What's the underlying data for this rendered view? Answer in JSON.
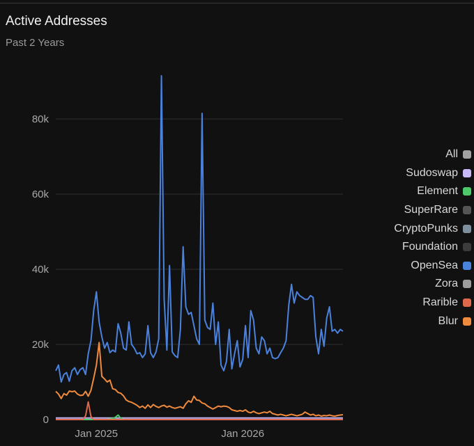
{
  "header": {
    "title": "Active Addresses",
    "subtitle": "Past 2 Years"
  },
  "colors": {
    "background": "#111112",
    "gridline": "#2e2e30",
    "tick_text": "#a8a8a8"
  },
  "chart_data": {
    "type": "line",
    "title": "Active Addresses",
    "subtitle": "Past 2 Years",
    "xlabel": "",
    "ylabel": "",
    "ylim": [
      0,
      95000
    ],
    "y_ticks": [
      0,
      20000,
      40000,
      60000,
      80000
    ],
    "y_tick_labels": [
      "0",
      "20k",
      "40k",
      "60k",
      "80k"
    ],
    "x_tick_labels": [
      "Jan 2025",
      "Jan 2026"
    ],
    "x_tick_index": [
      15,
      69
    ],
    "grid": "horizontal",
    "legend_position": "right",
    "x_count": 107,
    "series": [
      {
        "name": "All",
        "color": "#a3a3a3",
        "values": []
      },
      {
        "name": "Sudoswap",
        "color": "#c9b8f7",
        "values": [
          400,
          400,
          400,
          400,
          400,
          400,
          400,
          400,
          400,
          400,
          400,
          400,
          400,
          400,
          400,
          400,
          400,
          400,
          400,
          400,
          400,
          400,
          400,
          400,
          400,
          400,
          400,
          400,
          400,
          400,
          400,
          400,
          400,
          400,
          400,
          400,
          400,
          400,
          400,
          400,
          400,
          400,
          400,
          400,
          400,
          400,
          400,
          400,
          400,
          400,
          400,
          400,
          400,
          400,
          400,
          400,
          400,
          400,
          400,
          400,
          400,
          400,
          400,
          400,
          400,
          400,
          400,
          400,
          400,
          400,
          400,
          400,
          400,
          400,
          400,
          400,
          400,
          400,
          400,
          400,
          400,
          400,
          400,
          400,
          400,
          400,
          400,
          400,
          400,
          400,
          400,
          400,
          400,
          400,
          400,
          400,
          400,
          400,
          400,
          400,
          400,
          400,
          400,
          400,
          400,
          400,
          400
        ]
      },
      {
        "name": "Element",
        "color": "#4ec96a",
        "values": [
          0,
          0,
          0,
          0,
          0,
          0,
          0,
          0,
          0,
          0,
          0,
          0,
          0,
          0,
          0,
          0,
          0,
          0,
          0,
          0,
          200,
          300,
          600,
          1200,
          300,
          0,
          0,
          0,
          0,
          0,
          0,
          0,
          0,
          0,
          0,
          0,
          0,
          0,
          0,
          0,
          0,
          0,
          0,
          0,
          0,
          0,
          0,
          0,
          0,
          0,
          0,
          0,
          0,
          0,
          0,
          0,
          0,
          0,
          0,
          0,
          0,
          0,
          0,
          0,
          0,
          0,
          0,
          0,
          0,
          0,
          0,
          0,
          0,
          0,
          0,
          0,
          0,
          0,
          0,
          0,
          0,
          0,
          0,
          0,
          0,
          0,
          0,
          0,
          0,
          0,
          0,
          0,
          0,
          0,
          0,
          0,
          0,
          0,
          0,
          0,
          0,
          0,
          0,
          0,
          0,
          0,
          0
        ]
      },
      {
        "name": "SuperRare",
        "color": "#555555",
        "values": []
      },
      {
        "name": "CryptoPunks",
        "color": "#7d8e9c",
        "values": []
      },
      {
        "name": "Foundation",
        "color": "#3c3c3c",
        "values": []
      },
      {
        "name": "OpenSea",
        "color": "#4a82de",
        "values": [
          13000,
          14500,
          10000,
          12000,
          12500,
          10200,
          13000,
          13800,
          12000,
          13300,
          13800,
          12000,
          17500,
          21000,
          29000,
          34000,
          26000,
          22000,
          19000,
          20500,
          17800,
          18500,
          18000,
          25500,
          23000,
          19000,
          18500,
          26000,
          20000,
          19000,
          17500,
          17800,
          16500,
          17500,
          25000,
          17800,
          16500,
          18000,
          21500,
          91500,
          32000,
          18500,
          41000,
          18000,
          17000,
          16500,
          24000,
          46000,
          30000,
          28000,
          28500,
          25000,
          21500,
          20000,
          81500,
          26500,
          24500,
          24000,
          31000,
          20000,
          26000,
          14500,
          13000,
          15500,
          24000,
          13500,
          17500,
          21000,
          14000,
          16000,
          25000,
          16500,
          29000,
          26500,
          19000,
          17500,
          22000,
          21000,
          17500,
          19000,
          16500,
          16200,
          16500,
          17800,
          19000,
          21000,
          30500,
          36000,
          31000,
          34000,
          33000,
          32500,
          32000,
          32000,
          33000,
          32500,
          22000,
          17500,
          24000,
          19500,
          27000,
          30000,
          23500,
          24000,
          23000,
          24000,
          23500
        ]
      },
      {
        "name": "Zora",
        "color": "#9c9c9c",
        "values": []
      },
      {
        "name": "Rarible",
        "color": "#e0684a",
        "values": [
          0,
          0,
          0,
          0,
          0,
          0,
          0,
          0,
          0,
          0,
          0,
          1000,
          4700,
          800,
          0,
          0,
          0,
          0,
          0,
          0,
          0,
          0,
          0,
          0,
          0,
          0,
          0,
          0,
          0,
          0,
          0,
          0,
          0,
          0,
          0,
          0,
          0,
          0,
          0,
          0,
          0,
          0,
          0,
          0,
          0,
          0,
          0,
          0,
          0,
          0,
          0,
          0,
          0,
          0,
          0,
          0,
          0,
          0,
          0,
          0,
          0,
          0,
          0,
          0,
          0,
          0,
          0,
          0,
          0,
          0,
          0,
          0,
          0,
          0,
          0,
          0,
          0,
          0,
          0,
          0,
          0,
          0,
          0,
          0,
          0,
          0,
          0,
          0,
          0,
          0,
          0,
          0,
          0,
          0,
          0,
          0,
          0,
          0,
          0,
          0,
          0,
          0,
          0,
          0,
          0,
          0,
          0
        ]
      },
      {
        "name": "Blur",
        "color": "#f08a3c",
        "values": [
          7500,
          6800,
          5600,
          6900,
          6500,
          7600,
          7400,
          7600,
          6800,
          6400,
          6500,
          7500,
          6200,
          7800,
          11000,
          14500,
          20500,
          11500,
          10800,
          10000,
          10500,
          8200,
          8000,
          7200,
          7000,
          6300,
          5200,
          4800,
          4600,
          4200,
          3800,
          3200,
          3600,
          3000,
          3900,
          3200,
          4000,
          3500,
          3200,
          3600,
          3800,
          3300,
          3600,
          3200,
          3000,
          3200,
          3400,
          3000,
          4200,
          5000,
          4600,
          6200,
          5200,
          5100,
          4400,
          4200,
          3600,
          3200,
          2800,
          3200,
          3600,
          3400,
          3600,
          3500,
          3200,
          2600,
          2400,
          2200,
          2400,
          2200,
          2600,
          2000,
          1800,
          2200,
          1800,
          1600,
          1800,
          2000,
          1800,
          2200,
          1600,
          1400,
          1200,
          1400,
          1200,
          1000,
          1200,
          1400,
          1200,
          1000,
          1200,
          1400,
          2000,
          1600,
          1200,
          1400,
          1000,
          1200,
          900,
          1100,
          1000,
          1200,
          1000,
          900,
          1100,
          1200,
          1300
        ]
      }
    ]
  }
}
